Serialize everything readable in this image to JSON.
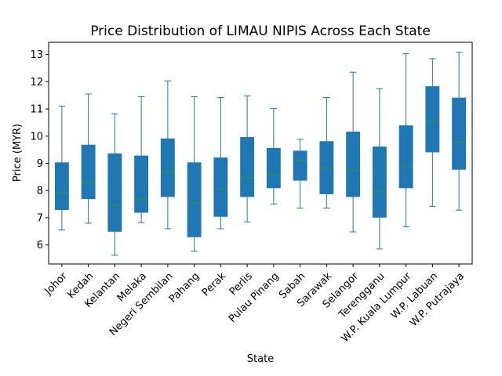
{
  "chart_data": {
    "type": "box",
    "title": "Price Distribution of LIMAU NIPIS Across Each State",
    "xlabel": "State",
    "ylabel": "Price (MYR)",
    "ylim": [
      5.3,
      13.45
    ],
    "yticks": [
      6,
      7,
      8,
      9,
      10,
      11,
      12,
      13
    ],
    "grid": false,
    "legend": "none",
    "colors": {
      "box_fill": "#1f77b4",
      "box_edge": "#1f77b4",
      "whisker": "#1f77b4",
      "median": "#2ca02c",
      "axis": "#000000"
    },
    "categories": [
      "Johor",
      "Kedah",
      "Kelantan",
      "Melaka",
      "Negeri Sembilan",
      "Pahang",
      "Perak",
      "Perlis",
      "Pulau Pinang",
      "Sabah",
      "Sarawak",
      "Selangor",
      "Terengganu",
      "W.P. Kuala Lumpur",
      "W.P. Labuan",
      "W.P. Putrajaya"
    ],
    "boxes": [
      {
        "state": "Johor",
        "min": 6.55,
        "q1": 7.3,
        "median": 7.92,
        "q3": 9.02,
        "max": 11.1
      },
      {
        "state": "Kedah",
        "min": 6.8,
        "q1": 7.7,
        "median": 8.3,
        "q3": 9.67,
        "max": 11.55
      },
      {
        "state": "Kelantan",
        "min": 5.62,
        "q1": 6.5,
        "median": 7.45,
        "q3": 9.35,
        "max": 10.82
      },
      {
        "state": "Melaka",
        "min": 6.82,
        "q1": 7.2,
        "median": 7.68,
        "q3": 9.27,
        "max": 11.45
      },
      {
        "state": "Negeri Sembilan",
        "min": 6.6,
        "q1": 7.78,
        "median": 8.7,
        "q3": 9.9,
        "max": 12.03
      },
      {
        "state": "Pahang",
        "min": 5.77,
        "q1": 6.3,
        "median": 7.55,
        "q3": 9.02,
        "max": 11.45
      },
      {
        "state": "Perak",
        "min": 6.6,
        "q1": 7.05,
        "median": 8.08,
        "q3": 9.2,
        "max": 11.42
      },
      {
        "state": "Perlis",
        "min": 6.85,
        "q1": 7.78,
        "median": 8.48,
        "q3": 9.95,
        "max": 11.48
      },
      {
        "state": "Pulau Pinang",
        "min": 7.5,
        "q1": 8.1,
        "median": 8.58,
        "q3": 9.55,
        "max": 11.02
      },
      {
        "state": "Sabah",
        "min": 7.35,
        "q1": 8.38,
        "median": 9.1,
        "q3": 9.45,
        "max": 9.88
      },
      {
        "state": "Sarawak",
        "min": 7.35,
        "q1": 7.88,
        "median": 8.82,
        "q3": 9.8,
        "max": 11.42
      },
      {
        "state": "Selangor",
        "min": 6.48,
        "q1": 7.78,
        "median": 8.72,
        "q3": 10.15,
        "max": 12.35
      },
      {
        "state": "Terengganu",
        "min": 5.85,
        "q1": 7.02,
        "median": 7.97,
        "q3": 9.6,
        "max": 11.75
      },
      {
        "state": "W.P. Kuala Lumpur",
        "min": 6.67,
        "q1": 8.1,
        "median": 8.9,
        "q3": 10.38,
        "max": 13.03
      },
      {
        "state": "W.P. Labuan",
        "min": 7.42,
        "q1": 9.42,
        "median": 10.55,
        "q3": 11.82,
        "max": 12.85
      },
      {
        "state": "W.P. Putrajaya",
        "min": 7.28,
        "q1": 8.78,
        "median": 9.78,
        "q3": 11.4,
        "max": 13.08
      }
    ]
  }
}
